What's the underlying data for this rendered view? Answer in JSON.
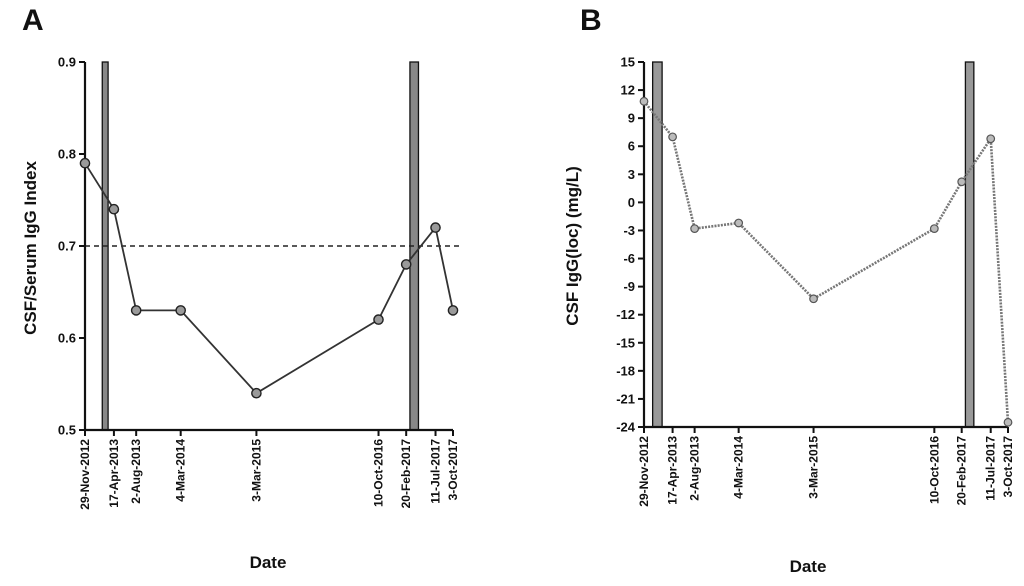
{
  "chart_data": [
    {
      "panel": "A",
      "type": "line",
      "ylabel": "CSF/Serum IgG Index",
      "xlabel": "Date",
      "ylim": [
        0.5,
        0.9
      ],
      "yticks": [
        "0.5",
        "0.6",
        "0.7",
        "0.8",
        "0.9"
      ],
      "x_tick_labels": [
        "29-Nov-2012",
        "17-Apr-2013",
        "2-Aug-2013",
        "4-Mar-2014",
        "3-Mar-2015",
        "10-Oct-2016",
        "20-Feb-2017",
        "11-Jul-2017",
        "3-Oct-2017"
      ],
      "x": [
        "2012-11-29",
        "2013-04-17",
        "2013-08-02",
        "2014-03-04",
        "2015-03-03",
        "2016-10-10",
        "2017-02-20",
        "2017-07-11",
        "2017-10-03"
      ],
      "values": [
        0.79,
        0.74,
        0.63,
        0.63,
        0.54,
        0.62,
        0.68,
        0.72,
        0.63
      ],
      "reference_line": 0.7,
      "shaded_periods": [
        [
          "2013-02-20",
          "2013-03-20"
        ],
        [
          "2017-03-10",
          "2017-04-20"
        ]
      ],
      "color": "#333333"
    },
    {
      "panel": "B",
      "type": "line",
      "ylabel": "CSF IgG(loc) (mg/L)",
      "xlabel": "Date",
      "ylim": [
        -24,
        15
      ],
      "yticks": [
        "-24",
        "-21",
        "-18",
        "-15",
        "-12",
        "-9",
        "-6",
        "-3",
        "0",
        "3",
        "6",
        "9",
        "12",
        "15"
      ],
      "x_tick_labels": [
        "29-Nov-2012",
        "17-Apr-2013",
        "2-Aug-2013",
        "4-Mar-2014",
        "3-Mar-2015",
        "10-Oct-2016",
        "20-Feb-2017",
        "11-Jul-2017",
        "3-Oct-2017"
      ],
      "x": [
        "2012-11-29",
        "2013-04-17",
        "2013-08-02",
        "2014-03-04",
        "2015-03-03",
        "2016-10-10",
        "2017-02-20",
        "2017-07-11",
        "2017-10-03"
      ],
      "values": [
        10.8,
        7.0,
        -2.8,
        -2.2,
        -10.3,
        -2.8,
        2.2,
        6.8,
        -23.5
      ],
      "shaded_periods": [
        [
          "2013-01-10",
          "2013-02-25"
        ],
        [
          "2017-03-10",
          "2017-04-20"
        ]
      ],
      "color": "#777777"
    }
  ]
}
